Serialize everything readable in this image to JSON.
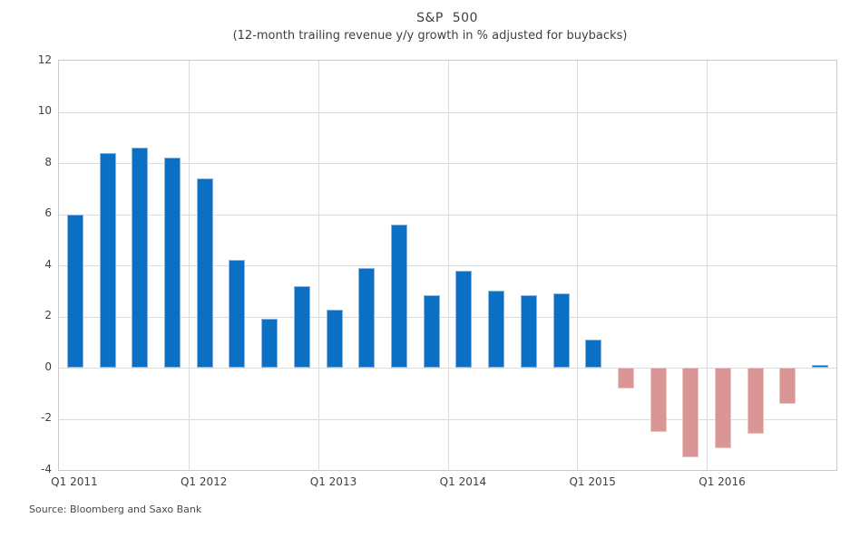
{
  "chart_data": {
    "type": "bar",
    "title": "S&P  500",
    "subtitle": "(12-month trailing revenue y/y growth in % adjusted for buybacks)",
    "xlabel": "",
    "ylabel": "",
    "categories": [
      "Q1 2011",
      "Q2 2011",
      "Q3 2011",
      "Q4 2011",
      "Q1 2012",
      "Q2 2012",
      "Q3 2012",
      "Q4 2012",
      "Q1 2013",
      "Q2 2013",
      "Q3 2013",
      "Q4 2013",
      "Q1 2014",
      "Q2 2014",
      "Q3 2014",
      "Q4 2014",
      "Q1 2015",
      "Q2 2015",
      "Q3 2015",
      "Q4 2015",
      "Q1 2016",
      "Q2 2016",
      "Q3 2016",
      "Q4 2016"
    ],
    "values": [
      6.0,
      8.4,
      8.6,
      8.2,
      7.4,
      4.2,
      1.9,
      3.2,
      2.25,
      3.9,
      5.6,
      2.85,
      3.8,
      3.0,
      2.85,
      2.9,
      1.1,
      -0.8,
      -2.5,
      -3.5,
      -3.15,
      -2.6,
      -1.4,
      0.1
    ],
    "x_tick_labels": [
      "Q1 2011",
      "Q1 2012",
      "Q1 2013",
      "Q1 2014",
      "Q1 2015",
      "Q1 2016"
    ],
    "y_ticks": [
      12,
      10,
      8,
      6,
      4,
      2,
      0,
      -2,
      -4
    ],
    "ylim": [
      -4,
      12
    ],
    "grid": true,
    "legend": "none",
    "positive_color": "#0b70c4",
    "negative_color": "#d99694",
    "source": "Source:  Bloomberg and Saxo Bank"
  }
}
